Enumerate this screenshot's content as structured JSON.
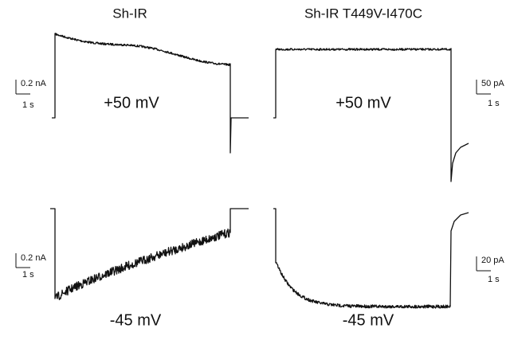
{
  "panels": [
    {
      "title": "Sh-IR",
      "top": {
        "voltage": "+50 mV",
        "scale_current": "0.2 nA",
        "scale_time": "1 s"
      },
      "bottom": {
        "voltage": "-45 mV",
        "scale_current": "0.2 nA",
        "scale_time": "1 s"
      }
    },
    {
      "title": "Sh-IR T449V-I470C",
      "top": {
        "voltage": "+50 mV",
        "scale_current": "50 pA",
        "scale_time": "1 s"
      },
      "bottom": {
        "voltage": "-45 mV",
        "scale_current": "20 pA",
        "scale_time": "1 s"
      }
    }
  ]
}
